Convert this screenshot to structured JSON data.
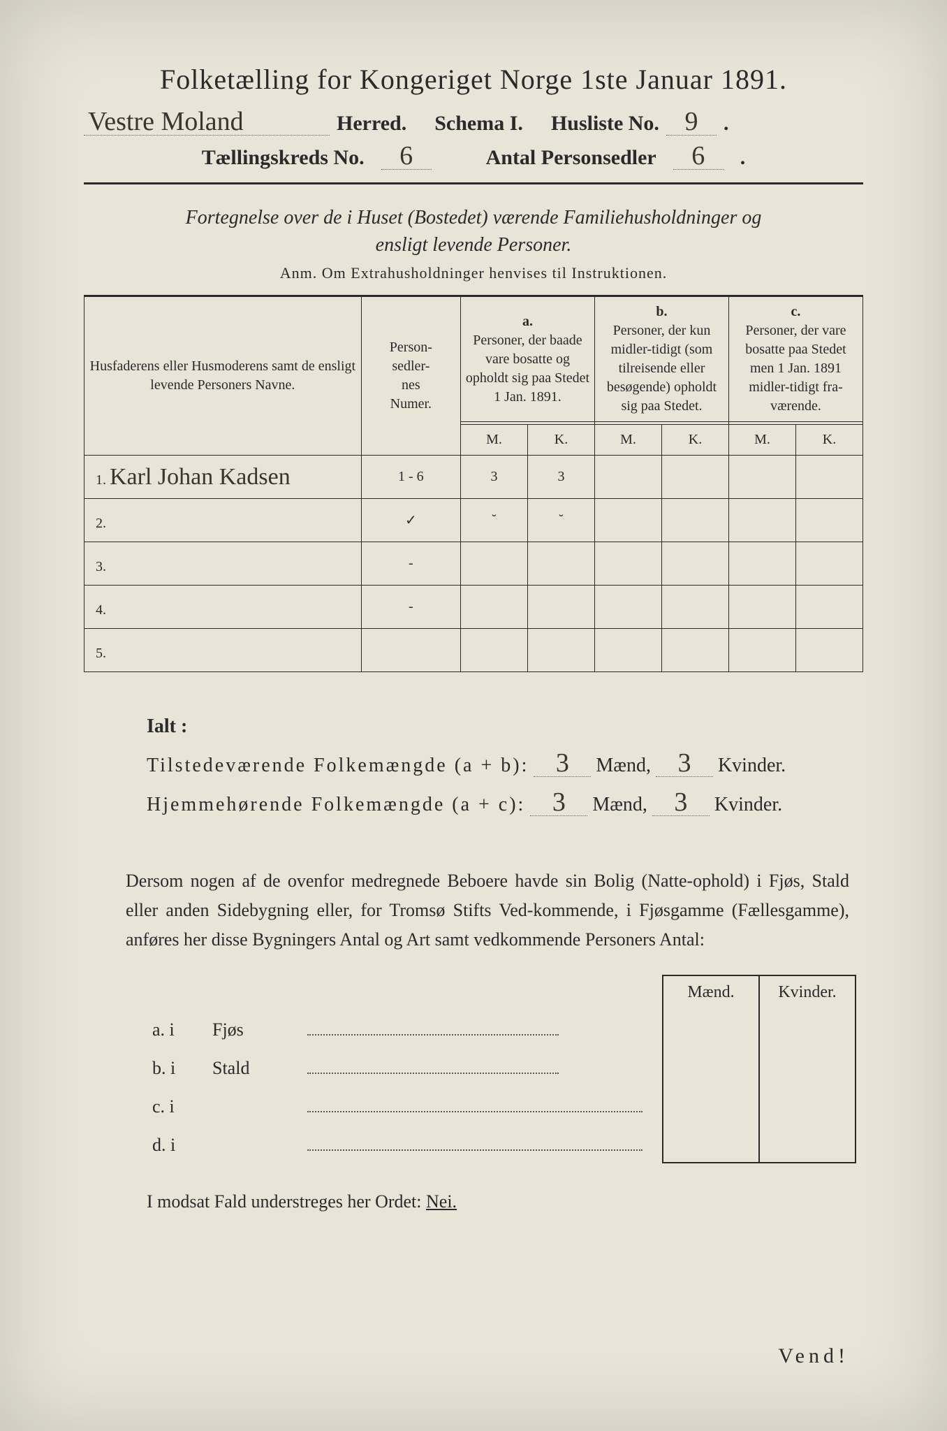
{
  "title": "Folketælling for Kongeriget Norge 1ste Januar 1891.",
  "header": {
    "herred_hand": "Vestre Moland",
    "herred_label": "Herred.",
    "schema_label": "Schema I.",
    "husliste_label": "Husliste No.",
    "husliste_no": "9",
    "kreds_label": "Tællingskreds No.",
    "kreds_no": "6",
    "antal_label": "Antal Personsedler",
    "antal_no": "6"
  },
  "subtitle": "Fortegnelse over de i Huset (Bostedet) værende Familiehusholdninger og ensligt levende Personer.",
  "anm": "Anm. Om Extrahusholdninger henvises til Instruktionen.",
  "table": {
    "col_name": "Husfaderens eller Husmoderens samt de ensligt levende Personers Navne.",
    "col_num": "Person-\nsedler-\nnes\nNumer.",
    "col_a_letter": "a.",
    "col_a": "Personer, der baade vare bosatte og opholdt sig paa Stedet 1 Jan. 1891.",
    "col_b_letter": "b.",
    "col_b": "Personer, der kun midler-tidigt (som tilreisende eller besøgende) opholdt sig paa Stedet.",
    "col_c_letter": "c.",
    "col_c": "Personer, der vare bosatte paa Stedet men 1 Jan. 1891 midler-tidigt fra-værende.",
    "m": "M.",
    "k": "K.",
    "rows": [
      {
        "n": "1.",
        "name": "Karl Johan Kadsen",
        "num": "1 - 6",
        "a_m": "3",
        "a_k": "3",
        "b_m": "",
        "b_k": "",
        "c_m": "",
        "c_k": ""
      },
      {
        "n": "2.",
        "name": "",
        "num": "✓",
        "a_m": "˘",
        "a_k": "˘",
        "b_m": "",
        "b_k": "",
        "c_m": "",
        "c_k": ""
      },
      {
        "n": "3.",
        "name": "",
        "num": "-",
        "a_m": "",
        "a_k": "",
        "b_m": "",
        "b_k": "",
        "c_m": "",
        "c_k": ""
      },
      {
        "n": "4.",
        "name": "",
        "num": "-",
        "a_m": "",
        "a_k": "",
        "b_m": "",
        "b_k": "",
        "c_m": "",
        "c_k": ""
      },
      {
        "n": "5.",
        "name": "",
        "num": "",
        "a_m": "",
        "a_k": "",
        "b_m": "",
        "b_k": "",
        "c_m": "",
        "c_k": ""
      }
    ]
  },
  "totals": {
    "ialt": "Ialt :",
    "line1_label": "Tilstedeværende Folkemængde (a + b):",
    "line2_label": "Hjemmehørende Folkemængde (a + c):",
    "maend": "Mænd,",
    "kvinder": "Kvinder.",
    "l1_m": "3",
    "l1_k": "3",
    "l2_m": "3",
    "l2_k": "3"
  },
  "paragraph": "Dersom nogen af de ovenfor medregnede Beboere havde sin Bolig (Natte-ophold) i Fjøs, Stald eller anden Sidebygning eller, for Tromsø Stifts Ved-kommende, i Fjøsgamme (Fællesgamme), anføres her disse Bygningers Antal og Art samt vedkommende Personers Antal:",
  "outbuildings": {
    "maend": "Mænd.",
    "kvinder": "Kvinder.",
    "rows": [
      {
        "label": "a. i",
        "type": "Fjøs"
      },
      {
        "label": "b. i",
        "type": "Stald"
      },
      {
        "label": "c. i",
        "type": ""
      },
      {
        "label": "d. i",
        "type": ""
      }
    ]
  },
  "footer": {
    "text_pre": "I modsat Fald understreges her Ordet: ",
    "nei": "Nei.",
    "vend": "Vend!"
  }
}
